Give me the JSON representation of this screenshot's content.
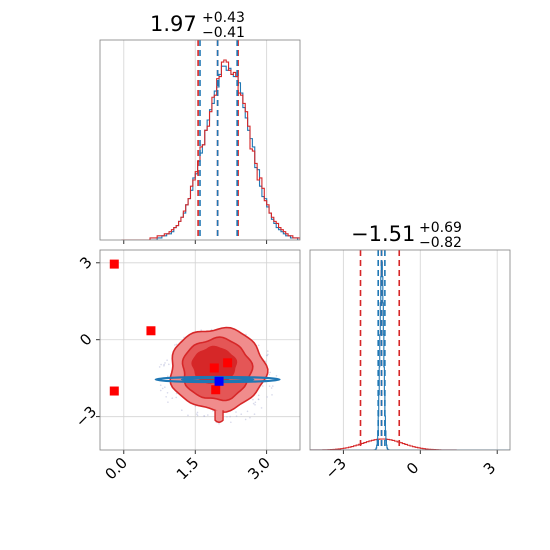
{
  "colors": {
    "red": "#d62728",
    "blue": "#1f77b4",
    "marker_red": "#ff0000",
    "marker_blue": "#0000ff",
    "grid": "#d3d3d3",
    "axes": "#808080"
  },
  "panels": {
    "p1_title": {
      "median": "1.97",
      "plus": "+0.43",
      "minus": "−0.41"
    },
    "p2_title": {
      "median": "−1.51",
      "plus": "+0.69",
      "minus": "−0.82"
    }
  },
  "chart_data": {
    "type": "corner",
    "parameters": [
      "param_1",
      "param_2"
    ],
    "grid": true,
    "series": [
      {
        "color": "#d62728"
      },
      {
        "color": "#1f77b4"
      }
    ],
    "ticks": {
      "p1": [
        {
          "value": 0.0,
          "label": "0.0"
        },
        {
          "value": 1.5,
          "label": "1.5"
        },
        {
          "value": 3.0,
          "label": "3.0"
        }
      ],
      "p2": [
        {
          "value": -3,
          "label": "−3"
        },
        {
          "value": 0,
          "label": "0"
        },
        {
          "value": 3,
          "label": "3"
        }
      ]
    },
    "ranges": {
      "p1": [
        -0.5,
        3.7
      ],
      "p2": [
        -4.3,
        3.5
      ]
    },
    "diag1": {
      "xlim": [
        -0.5,
        3.7
      ],
      "quantile_lines_red": [
        1.56,
        1.97,
        2.4
      ],
      "quantile_lines_blue": [
        1.6,
        1.97,
        2.38
      ],
      "red_steps": {
        "start": -0.05,
        "width": 0.05,
        "counts": [
          0,
          0,
          0,
          0,
          0,
          0,
          0,
          0,
          0,
          0,
          0,
          0,
          1,
          1,
          1,
          2,
          2,
          2,
          3,
          3,
          4,
          5,
          6,
          7,
          9,
          11,
          14,
          17,
          20,
          26,
          29,
          33,
          38,
          45,
          46,
          53,
          55,
          62,
          69,
          70,
          78,
          79,
          86,
          87,
          86,
          82,
          80,
          81,
          79,
          71,
          70,
          66,
          62,
          55,
          44,
          43,
          37,
          29,
          30,
          25,
          19,
          17,
          13,
          11,
          9,
          8,
          6,
          5,
          4,
          3,
          2,
          2,
          1,
          1,
          1,
          0,
          0,
          0,
          0,
          0
        ]
      },
      "blue_steps": {
        "start": -0.05,
        "width": 0.05,
        "counts": [
          0,
          0,
          0,
          0,
          0,
          0,
          0,
          0,
          0,
          0,
          0,
          0,
          0,
          0,
          0,
          1,
          1,
          2,
          2,
          3,
          3,
          4,
          6,
          7,
          9,
          11,
          13,
          17,
          20,
          24,
          30,
          32,
          38,
          42,
          46,
          53,
          58,
          63,
          66,
          72,
          74,
          80,
          84,
          84,
          82,
          83,
          80,
          79,
          79,
          76,
          71,
          64,
          59,
          53,
          49,
          45,
          35,
          34,
          26,
          21,
          20,
          16,
          13,
          10,
          8,
          6,
          5,
          4,
          3,
          2,
          2,
          1,
          1,
          1,
          0,
          0,
          0,
          0,
          0,
          0
        ]
      }
    },
    "diag2": {
      "xlim": [
        -4.3,
        3.5
      ],
      "quantile_lines_red": [
        -2.33,
        -1.51,
        -0.82
      ],
      "quantile_lines_blue": [
        -1.64,
        -1.51,
        -1.38
      ],
      "red_gaussian": {
        "mean": -1.51,
        "sd": 0.78,
        "peak_fraction": 0.055
      },
      "blue_gaussian": {
        "mean": -1.51,
        "sd": 0.07,
        "peak_fraction": 0.95
      }
    },
    "joint": {
      "xlim": [
        -0.5,
        3.7
      ],
      "ylim": [
        -4.3,
        3.5
      ],
      "red_contours": [
        {
          "level": 1,
          "cx": 1.97,
          "cy": -1.15,
          "rx": 1.0,
          "ry": 1.6
        },
        {
          "level": 2,
          "cx": 1.95,
          "cy": -1.15,
          "rx": 0.72,
          "ry": 1.2
        },
        {
          "level": 3,
          "cx": 1.9,
          "cy": -1.0,
          "rx": 0.45,
          "ry": 0.7
        }
      ],
      "blue_ellipses": [
        {
          "cx": 1.97,
          "cy": -1.55,
          "rx": 1.3,
          "ry": 0.1
        },
        {
          "cx": 1.97,
          "cy": -1.55,
          "rx": 0.75,
          "ry": 0.06
        }
      ],
      "red_markers": [
        {
          "x": -0.2,
          "y": 2.95
        },
        {
          "x": 0.57,
          "y": 0.35
        },
        {
          "x": -0.2,
          "y": -2.0
        },
        {
          "x": 1.9,
          "y": -1.1
        },
        {
          "x": 2.18,
          "y": -0.9
        },
        {
          "x": 1.93,
          "y": -1.95
        }
      ],
      "blue_markers": [
        {
          "x": 2.0,
          "y": -1.62
        }
      ]
    }
  }
}
